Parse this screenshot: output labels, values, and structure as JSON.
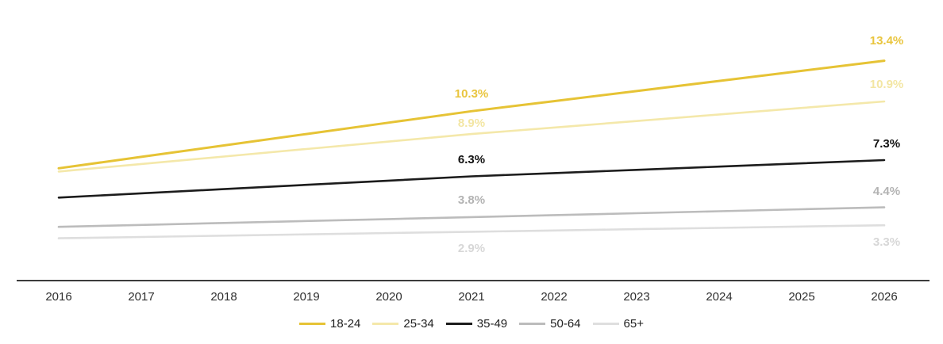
{
  "chart_data": {
    "type": "line",
    "title": "",
    "xlabel": "",
    "ylabel": "",
    "x": [
      2016,
      2017,
      2018,
      2019,
      2020,
      2021,
      2022,
      2023,
      2024,
      2025,
      2026
    ],
    "x_tick_labels": [
      "2016",
      "2017",
      "2018",
      "2019",
      "2020",
      "2021",
      "2022",
      "2023",
      "2024",
      "2025",
      "2026"
    ],
    "ylim": [
      0,
      17.2
    ],
    "grid": false,
    "legend_position": "bottom-center",
    "axis_color": "#3c3c3c",
    "tick_label_color": "#2f2f2f",
    "series": [
      {
        "name": "18-24",
        "color": "#e6c335",
        "label_color": "#e9c53e",
        "line_width": 3,
        "values": [
          6.8,
          7.5,
          8.2,
          8.9,
          9.6,
          10.3,
          10.92,
          11.54,
          12.16,
          12.78,
          13.4
        ],
        "point_labels": [
          {
            "x": 2021,
            "text": "10.3%",
            "dy": -29
          },
          {
            "x": 2026,
            "text": "13.4%",
            "dy": -33
          }
        ]
      },
      {
        "name": "25-34",
        "color": "#f4e8aa",
        "label_color": "#f3e6a3",
        "line_width": 2.6,
        "values": [
          6.6,
          7.06,
          7.52,
          7.98,
          8.44,
          8.9,
          9.3,
          9.7,
          10.1,
          10.5,
          10.9
        ],
        "point_labels": [
          {
            "x": 2021,
            "text": "8.9%",
            "dy": -21
          },
          {
            "x": 2026,
            "text": "10.9%",
            "dy": -29
          }
        ]
      },
      {
        "name": "35-49",
        "color": "#1c1c1c",
        "label_color": "#111111",
        "line_width": 2.6,
        "values": [
          5.0,
          5.26,
          5.52,
          5.78,
          6.04,
          6.3,
          6.5,
          6.7,
          6.9,
          7.1,
          7.3
        ],
        "point_labels": [
          {
            "x": 2021,
            "text": "6.3%",
            "dy": -29
          },
          {
            "x": 2026,
            "text": "7.3%",
            "dy": -28
          }
        ]
      },
      {
        "name": "50-64",
        "color": "#bcbcbc",
        "label_color": "#b3b3b3",
        "line_width": 2.6,
        "values": [
          3.2,
          3.32,
          3.44,
          3.56,
          3.68,
          3.8,
          3.92,
          4.04,
          4.16,
          4.28,
          4.4
        ],
        "point_labels": [
          {
            "x": 2021,
            "text": "3.8%",
            "dy": -29
          },
          {
            "x": 2026,
            "text": "4.4%",
            "dy": -28
          }
        ]
      },
      {
        "name": "65+",
        "color": "#dedede",
        "label_color": "#d7d7d7",
        "line_width": 2.6,
        "values": [
          2.5,
          2.58,
          2.66,
          2.74,
          2.82,
          2.9,
          2.98,
          3.06,
          3.14,
          3.22,
          3.3
        ],
        "point_labels": [
          {
            "x": 2021,
            "text": "2.9%",
            "dy": 14
          },
          {
            "x": 2026,
            "text": "3.3%",
            "dy": 14
          }
        ]
      }
    ]
  }
}
